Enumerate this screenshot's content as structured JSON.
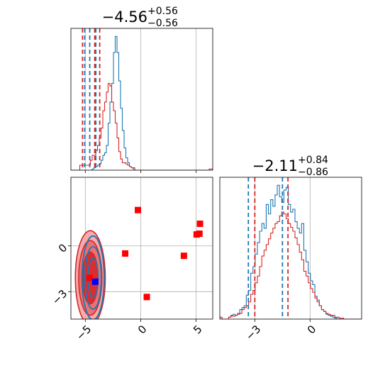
{
  "colors": {
    "blue": "#1f77b4",
    "red": "#d62728",
    "red_fill_light": "#f4a3a3",
    "red_fill_mid": "#ec6a6a",
    "grid": "#b0b0b0",
    "point_red": "#ff0000",
    "point_blue": "#0000ff"
  },
  "chart_data": [
    {
      "type": "histogram",
      "panel": "top-left",
      "title": {
        "value": "−4.56",
        "sup": "+0.56",
        "sub": "−0.56"
      },
      "xlim": [
        -6.3,
        6.5
      ],
      "grid": true,
      "x_ticks": [
        -5,
        0,
        5
      ],
      "tick_labels": [
        "−5",
        "0",
        "5"
      ],
      "quantile_lines": {
        "blue": [
          -4.6,
          -4.05,
          -5.05
        ],
        "red": [
          -4.15,
          -5.25,
          -3.7
        ]
      },
      "series": [
        {
          "color": "blue",
          "x_start": -6.3,
          "bin_width": 0.16,
          "values": [
            0,
            0,
            0,
            0,
            0,
            0,
            0,
            0,
            0,
            0,
            0,
            0,
            1,
            2,
            3,
            4,
            5,
            8,
            12,
            14,
            20,
            38,
            55,
            70,
            95,
            108,
            95,
            72,
            50,
            32,
            18,
            10,
            6,
            3,
            2,
            1,
            0,
            0,
            0,
            0,
            0,
            0,
            0,
            0,
            0,
            0,
            0,
            0,
            0,
            0,
            0,
            0,
            0,
            0,
            0,
            0,
            0,
            0,
            0,
            0,
            0,
            0,
            0,
            0,
            0,
            0,
            0,
            0,
            0,
            0,
            0,
            0,
            0,
            0,
            0,
            0,
            0,
            0,
            0,
            0
          ]
        },
        {
          "color": "red",
          "x_start": -6.3,
          "bin_width": 0.16,
          "values": [
            0,
            0,
            0,
            0,
            0,
            4,
            4,
            4,
            4,
            4,
            4,
            8,
            12,
            12,
            16,
            20,
            26,
            34,
            48,
            55,
            63,
            70,
            68,
            55,
            48,
            38,
            26,
            15,
            9,
            6,
            6,
            5,
            4,
            3,
            2,
            2,
            0,
            0,
            0,
            0,
            0,
            0,
            0,
            0,
            0,
            0,
            0,
            0,
            0,
            0,
            0,
            0,
            0,
            0,
            0,
            0,
            0,
            0,
            0,
            0,
            0,
            0,
            0,
            0,
            0,
            0,
            0,
            0,
            0,
            0,
            0,
            0,
            0,
            0,
            0,
            0,
            0,
            0,
            1,
            1
          ]
        }
      ]
    },
    {
      "type": "contour-scatter",
      "panel": "bottom-left",
      "xlim": [
        -6.3,
        6.5
      ],
      "ylim": [
        -4.8,
        4.5
      ],
      "grid": true,
      "x_ticks": [
        -5,
        0,
        5
      ],
      "x_tick_labels": [
        "−5",
        "0",
        "5"
      ],
      "y_ticks": [
        0,
        -3
      ],
      "y_tick_labels": [
        "0",
        "−3"
      ],
      "red_contour_center": [
        -4.55,
        -2.1
      ],
      "blue_contour_center": [
        -4.3,
        -2.1
      ],
      "red_points": [
        [
          -0.25,
          2.35
        ],
        [
          5.35,
          1.45
        ],
        [
          5.05,
          0.75
        ],
        [
          5.3,
          0.8
        ],
        [
          -1.4,
          -0.5
        ],
        [
          3.9,
          -0.65
        ],
        [
          0.55,
          -3.35
        ],
        [
          -4.6,
          -2.1
        ]
      ],
      "blue_points": [
        [
          -4.1,
          -2.35
        ]
      ]
    },
    {
      "type": "histogram",
      "panel": "bottom-right",
      "title": {
        "value": "−2.11",
        "sup": "+0.84",
        "sub": "−0.86"
      },
      "xlim": [
        -4.9,
        2.8
      ],
      "grid": true,
      "x_ticks": [
        -3,
        0
      ],
      "tick_labels": [
        "−3",
        "0"
      ],
      "quantile_lines": {
        "blue": [
          -3.35,
          -1.5
        ],
        "red": [
          -3.0,
          -1.2
        ]
      },
      "series": [
        {
          "color": "blue",
          "x_start": -4.9,
          "bin_width": 0.12,
          "values": [
            0,
            0,
            0,
            0,
            2,
            4,
            5,
            4,
            6,
            10,
            12,
            14,
            25,
            30,
            48,
            55,
            68,
            80,
            92,
            100,
            95,
            120,
            110,
            125,
            118,
            130,
            140,
            128,
            122,
            135,
            138,
            120,
            112,
            115,
            102,
            95,
            90,
            100,
            72,
            60,
            48,
            40,
            36,
            24,
            20,
            14,
            10,
            8,
            5,
            4,
            3,
            2,
            1,
            0,
            0,
            0,
            0,
            0,
            0,
            0,
            0,
            0,
            0,
            0,
            0,
            0
          ]
        },
        {
          "color": "red",
          "x_start": -4.9,
          "bin_width": 0.12,
          "values": [
            2,
            0,
            0,
            0,
            2,
            3,
            3,
            4,
            5,
            6,
            10,
            12,
            14,
            18,
            26,
            30,
            38,
            45,
            55,
            66,
            72,
            78,
            84,
            90,
            95,
            100,
            102,
            108,
            112,
            110,
            105,
            100,
            96,
            92,
            85,
            78,
            70,
            62,
            50,
            45,
            38,
            32,
            28,
            22,
            18,
            14,
            10,
            8,
            6,
            5,
            4,
            4,
            2,
            2,
            1,
            1,
            0,
            0,
            0,
            0,
            0,
            0,
            0,
            0,
            0,
            0
          ]
        }
      ]
    }
  ]
}
